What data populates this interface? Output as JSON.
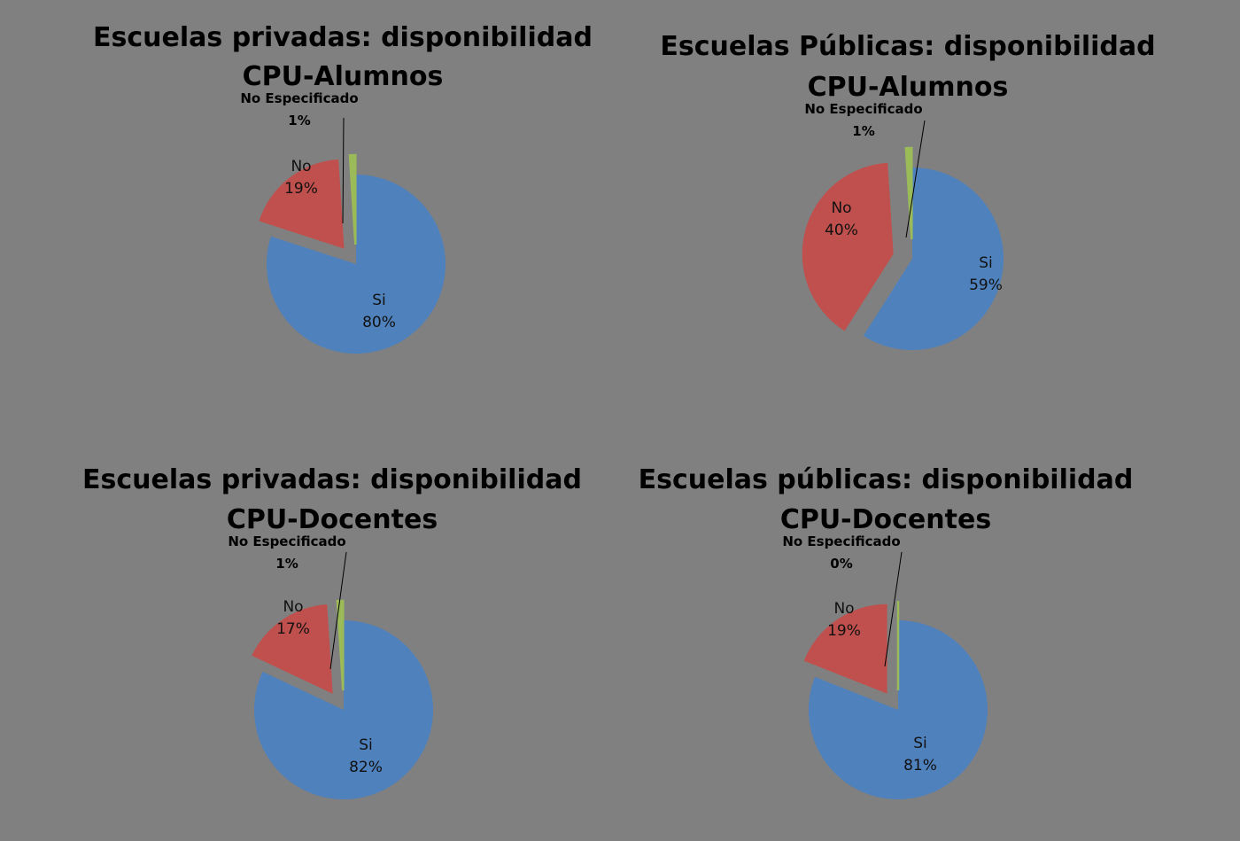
{
  "chart_data": [
    {
      "type": "pie",
      "title_line1": "Escuelas privadas: disponibilidad",
      "title_line2": "CPU-Alumnos",
      "slices": [
        {
          "label": "Si",
          "value": 80,
          "pct": "80%",
          "color": "#4f81bd"
        },
        {
          "label": "No",
          "value": 19,
          "pct": "19%",
          "color": "#c0504d"
        },
        {
          "label": "No Especificado",
          "value": 1,
          "pct": "1%",
          "color": "#9bbb59"
        }
      ]
    },
    {
      "type": "pie",
      "title_line1": "Escuelas Públicas: disponibilidad",
      "title_line2": "CPU-Alumnos",
      "slices": [
        {
          "label": "Si",
          "value": 59,
          "pct": "59%",
          "color": "#4f81bd"
        },
        {
          "label": "No",
          "value": 40,
          "pct": "40%",
          "color": "#c0504d"
        },
        {
          "label": "No Especificado",
          "value": 1,
          "pct": "1%",
          "color": "#9bbb59"
        }
      ]
    },
    {
      "type": "pie",
      "title_line1": "Escuelas privadas: disponibilidad",
      "title_line2": "CPU-Docentes",
      "slices": [
        {
          "label": "Si",
          "value": 82,
          "pct": "82%",
          "color": "#4f81bd"
        },
        {
          "label": "No",
          "value": 17,
          "pct": "17%",
          "color": "#c0504d"
        },
        {
          "label": "No Especificado",
          "value": 1,
          "pct": "1%",
          "color": "#9bbb59"
        }
      ]
    },
    {
      "type": "pie",
      "title_line1": "Escuelas públicas: disponibilidad",
      "title_line2": "CPU-Docentes",
      "slices": [
        {
          "label": "Si",
          "value": 81,
          "pct": "81%",
          "color": "#4f81bd"
        },
        {
          "label": "No",
          "value": 19,
          "pct": "19%",
          "color": "#c0504d"
        },
        {
          "label": "No Especificado",
          "value": 0,
          "pct": "0%",
          "color": "#9bbb59"
        }
      ]
    }
  ]
}
